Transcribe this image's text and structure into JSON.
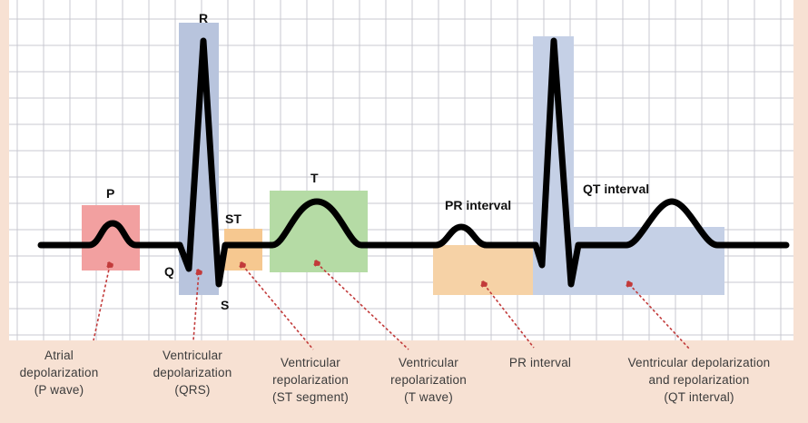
{
  "colors": {
    "background": "#f7e1d3",
    "grid": "#c8c8d0",
    "trace": "#000000",
    "leader": "#c23a3a",
    "p_box": "#f2a0a0",
    "qrs_box": "#b8c4dd",
    "st_box": "#f6c890",
    "t_box": "#b5dba5",
    "pr_box": "#f6d2a6",
    "qt_box": "#c5d0e6"
  },
  "wave_labels": {
    "p": "P",
    "q": "Q",
    "r": "R",
    "s": "S",
    "st": "ST",
    "t": "T",
    "pr_interval": "PR interval",
    "qt_interval": "QT interval"
  },
  "captions": [
    {
      "lines": [
        "Atrial",
        "depolarization",
        "(P wave)"
      ]
    },
    {
      "lines": [
        "Ventricular",
        "depolarization",
        "(QRS)"
      ]
    },
    {
      "lines": [
        "Ventricular",
        "repolarization",
        "(ST segment)"
      ]
    },
    {
      "lines": [
        "Ventricular",
        "repolarization",
        "(T wave)"
      ]
    },
    {
      "lines": [
        "PR interval"
      ]
    },
    {
      "lines": [
        "Ventricular depolarization",
        "and repolarization",
        "(QT interval)"
      ]
    }
  ]
}
